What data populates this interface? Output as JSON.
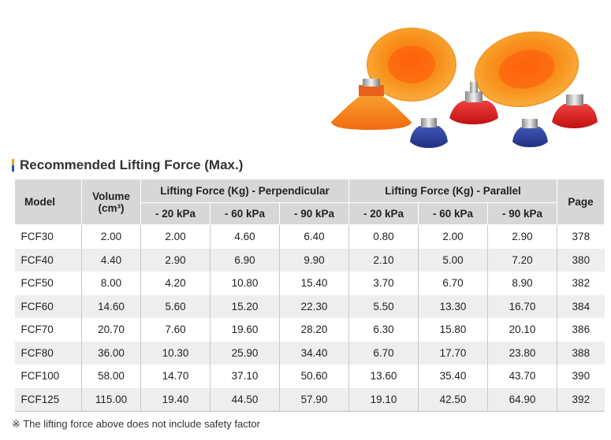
{
  "heading": "Recommended Lifting Force (Max.)",
  "heading_mark_colors": [
    "#f29a1f",
    "#2a52a8"
  ],
  "table": {
    "col_model": "Model",
    "col_volume": "Volume",
    "col_volume_unit": "(cm³)",
    "group_perpendicular": "Lifting Force (Kg) - Perpendicular",
    "group_parallel": "Lifting Force (Kg) - Parallel",
    "col_page": "Page",
    "pressures": [
      "- 20 kPa",
      "- 60 kPa",
      "- 90 kPa",
      "- 20 kPa",
      "- 60 kPa",
      "- 90 kPa"
    ],
    "rows": [
      [
        "FCF30",
        "2.00",
        "2.00",
        "4.60",
        "6.40",
        "0.80",
        "2.00",
        "2.90",
        "378"
      ],
      [
        "FCF40",
        "4.40",
        "2.90",
        "6.90",
        "9.90",
        "2.10",
        "5.00",
        "7.20",
        "380"
      ],
      [
        "FCF50",
        "8.00",
        "4.20",
        "10.80",
        "15.40",
        "3.70",
        "6.70",
        "8.90",
        "382"
      ],
      [
        "FCF60",
        "14.60",
        "5.60",
        "15.20",
        "22.30",
        "5.50",
        "13.30",
        "16.70",
        "384"
      ],
      [
        "FCF70",
        "20.70",
        "7.60",
        "19.60",
        "28.20",
        "6.30",
        "15.80",
        "20.10",
        "386"
      ],
      [
        "FCF80",
        "36.00",
        "10.30",
        "25.90",
        "34.40",
        "6.70",
        "17.70",
        "23.80",
        "388"
      ],
      [
        "FCF100",
        "58.00",
        "14.70",
        "37.10",
        "50.60",
        "13.60",
        "35.40",
        "43.70",
        "390"
      ],
      [
        "FCF125",
        "115.00",
        "19.40",
        "44.50",
        "57.90",
        "19.10",
        "42.50",
        "64.90",
        "392"
      ]
    ]
  },
  "footnote": "※  The lifting force above does not include safety factor",
  "photo": {
    "icon": "suction-cups-photo",
    "cup_colors": [
      "#f0861c",
      "#e02020",
      "#2a3f96"
    ]
  }
}
